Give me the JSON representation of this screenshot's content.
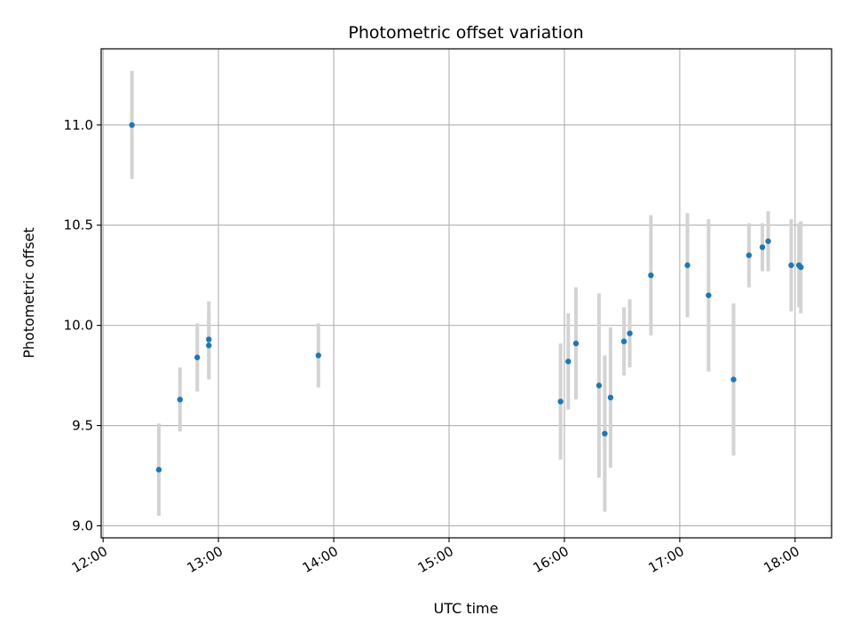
{
  "chart_data": {
    "type": "scatter",
    "title": "Photometric offset variation",
    "xlabel": "UTC time",
    "ylabel": "Photometric offset",
    "x_ticks": [
      "12:00",
      "13:00",
      "14:00",
      "15:00",
      "16:00",
      "17:00",
      "18:00"
    ],
    "y_ticks": [
      "9.0",
      "9.5",
      "10.0",
      "10.5",
      "11.0"
    ],
    "xlim": [
      "11:59",
      "18:19"
    ],
    "ylim": [
      8.94,
      11.38
    ],
    "grid": true,
    "colors": {
      "point": "#1f77b4",
      "errorbar": "#d3d3d3",
      "grid": "#b0b0b0"
    },
    "points": [
      {
        "x": "12:15",
        "y": 11.0,
        "err": 0.27
      },
      {
        "x": "12:29",
        "y": 9.28,
        "err": 0.23
      },
      {
        "x": "12:40",
        "y": 9.63,
        "err": 0.16
      },
      {
        "x": "12:49",
        "y": 9.84,
        "err": 0.17
      },
      {
        "x": "12:55",
        "y": 9.9,
        "err": 0.17
      },
      {
        "x": "12:55",
        "y": 9.93,
        "err": 0.19
      },
      {
        "x": "13:52",
        "y": 9.85,
        "err": 0.16
      },
      {
        "x": "15:58",
        "y": 9.62,
        "err": 0.29
      },
      {
        "x": "16:02",
        "y": 9.82,
        "err": 0.24
      },
      {
        "x": "16:06",
        "y": 9.91,
        "err": 0.28
      },
      {
        "x": "16:18",
        "y": 9.7,
        "err": 0.46
      },
      {
        "x": "16:21",
        "y": 9.46,
        "err": 0.39
      },
      {
        "x": "16:24",
        "y": 9.64,
        "err": 0.35
      },
      {
        "x": "16:31",
        "y": 9.92,
        "err": 0.17
      },
      {
        "x": "16:34",
        "y": 9.96,
        "err": 0.17
      },
      {
        "x": "16:45",
        "y": 10.25,
        "err": 0.3
      },
      {
        "x": "17:04",
        "y": 10.3,
        "err": 0.26
      },
      {
        "x": "17:15",
        "y": 10.15,
        "err": 0.38
      },
      {
        "x": "17:28",
        "y": 9.73,
        "err": 0.38
      },
      {
        "x": "17:36",
        "y": 10.35,
        "err": 0.16
      },
      {
        "x": "17:43",
        "y": 10.39,
        "err": 0.12
      },
      {
        "x": "17:46",
        "y": 10.42,
        "err": 0.15
      },
      {
        "x": "17:58",
        "y": 10.3,
        "err": 0.23
      },
      {
        "x": "18:02",
        "y": 10.3,
        "err": 0.21
      },
      {
        "x": "18:03",
        "y": 10.29,
        "err": 0.23
      }
    ]
  }
}
